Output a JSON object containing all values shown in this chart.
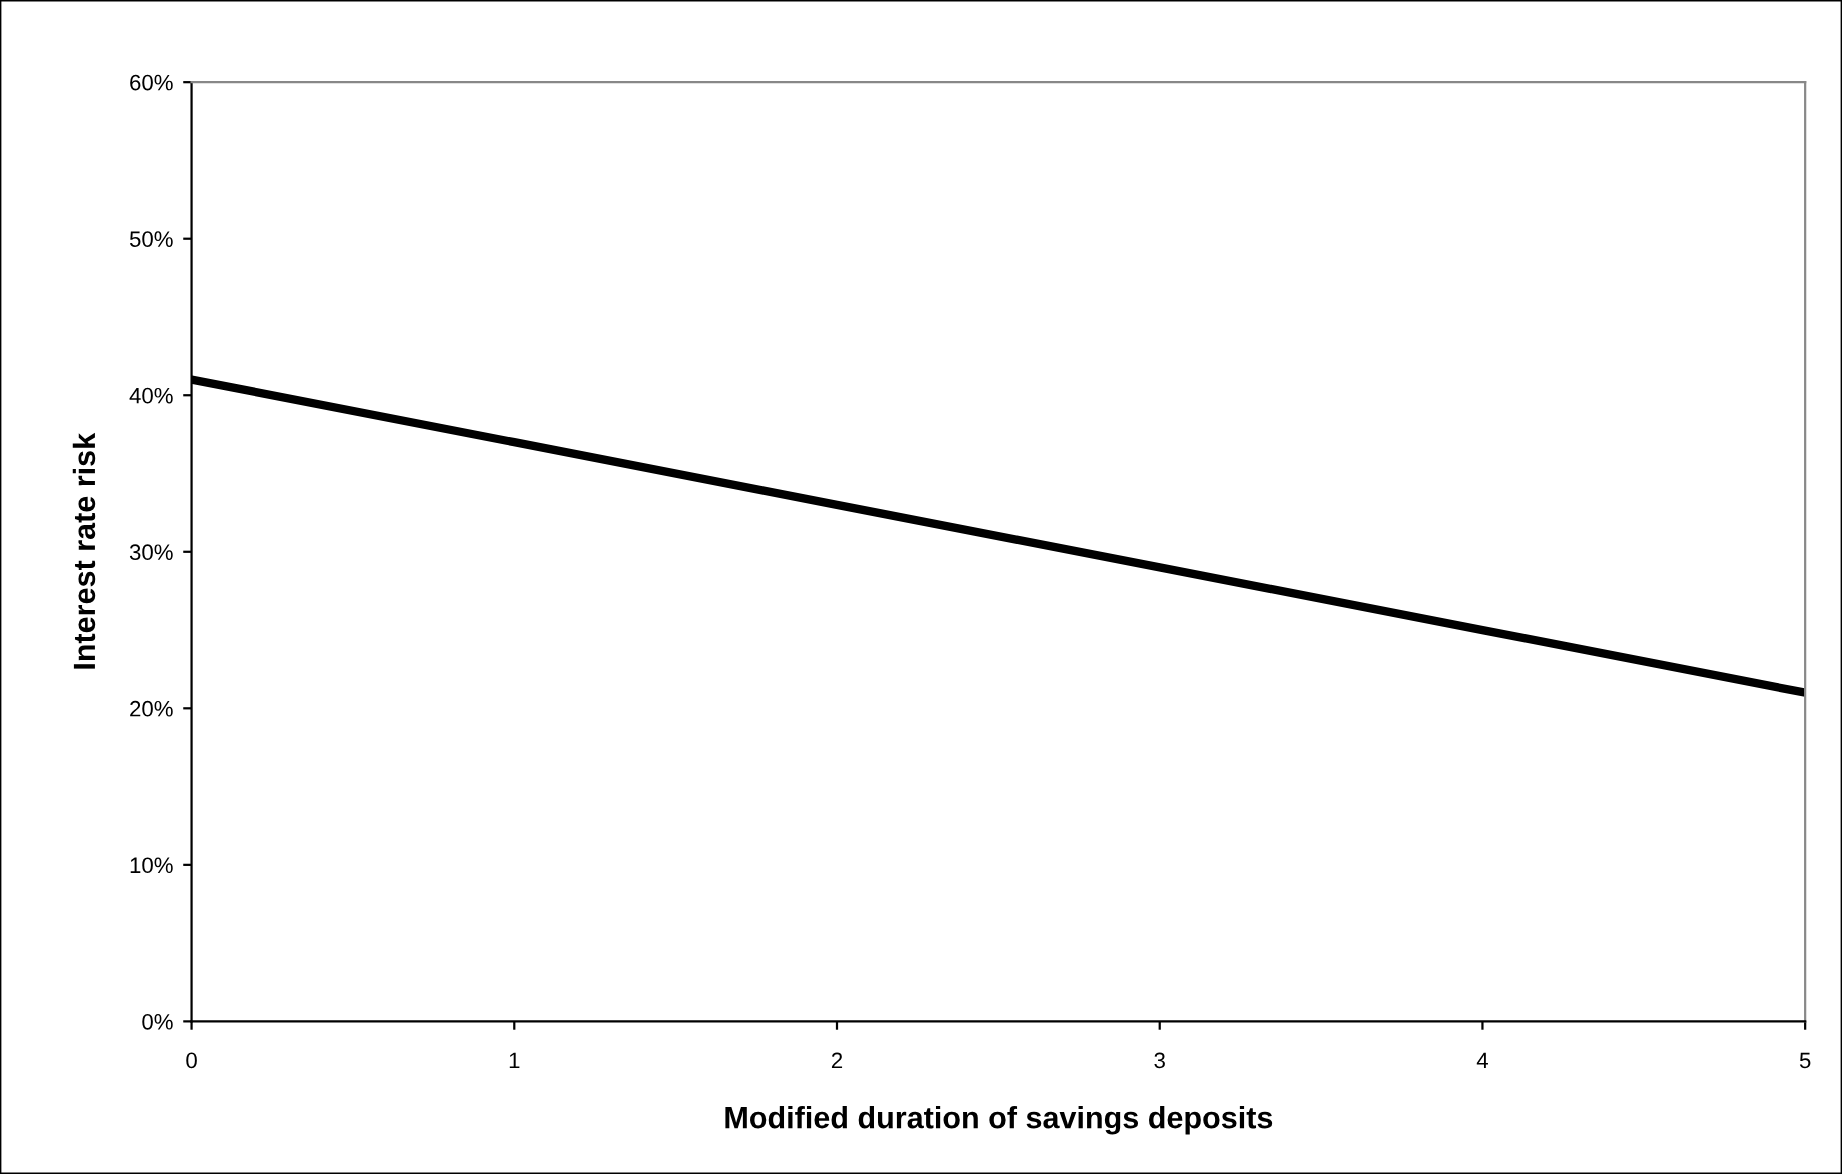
{
  "chart_data": {
    "type": "line",
    "xlabel": "Modified duration of savings deposits",
    "ylabel": "Interest rate risk",
    "x": [
      0,
      1,
      2,
      3,
      4,
      5
    ],
    "series": [
      {
        "color": "#000000",
        "values": [
          41,
          37,
          33,
          29,
          25,
          21
        ]
      }
    ],
    "xlim": [
      0,
      5
    ],
    "xticks": [
      0,
      1,
      2,
      3,
      4,
      5
    ],
    "ylim": [
      0,
      60
    ],
    "yticks": [
      {
        "value": 0,
        "label": "0%"
      },
      {
        "value": 10,
        "label": "10%"
      },
      {
        "value": 20,
        "label": "20%"
      },
      {
        "value": 30,
        "label": "30%"
      },
      {
        "value": 40,
        "label": "40%"
      },
      {
        "value": 50,
        "label": "50%"
      },
      {
        "value": 60,
        "label": "60%"
      }
    ],
    "grid": false,
    "legend": false,
    "marker": "none",
    "line_style": "solid"
  }
}
